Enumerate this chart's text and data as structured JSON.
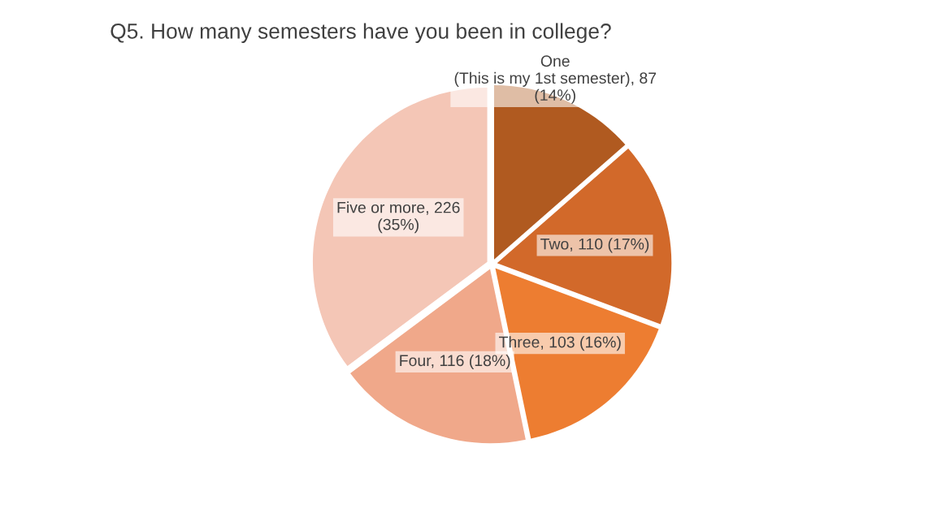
{
  "chart_data": {
    "type": "pie",
    "title": "Q5. How many semesters have you been in college?",
    "categories": [
      "One\n(This is my 1st semester)",
      "Two",
      "Three",
      "Four",
      "Five or more"
    ],
    "values": [
      87,
      110,
      103,
      116,
      226
    ],
    "value_labels": [
      "87\n(14%)",
      "110 (17%)",
      "103 (16%)",
      "116 (18%)",
      "226\n(35%)"
    ],
    "colors": [
      "#b05a20",
      "#d2692a",
      "#ed7d31",
      "#f0a88a",
      "#f4c6b6"
    ],
    "legend": false
  }
}
